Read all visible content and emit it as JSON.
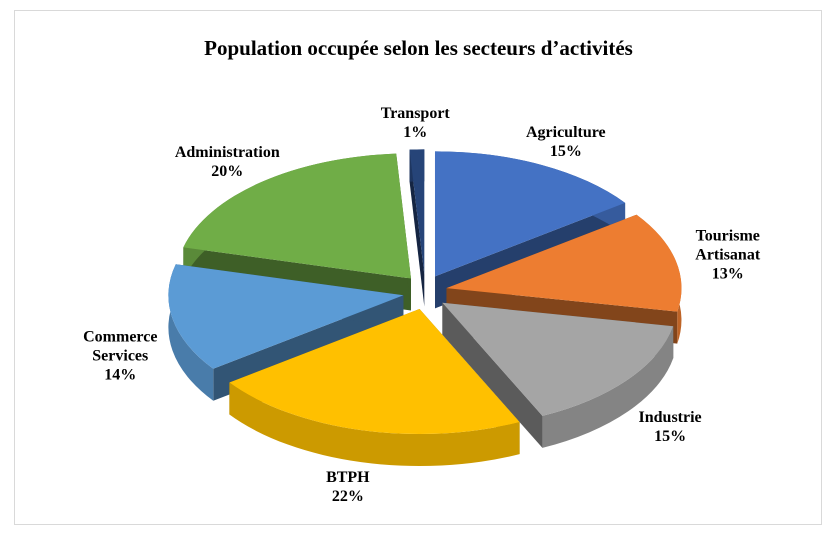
{
  "chart_data": {
    "type": "pie",
    "title": "Population occupée selon les secteurs d’activités",
    "categories": [
      "Agriculture",
      "Tourisme Artisanat",
      "Industrie",
      "BTPH",
      "Commerce Services",
      "Administration",
      "Transport"
    ],
    "values": [
      15,
      13,
      15,
      22,
      14,
      20,
      1
    ],
    "value_labels": [
      "15%",
      "13%",
      "15%",
      "22%",
      "14%",
      "20%",
      "1%"
    ],
    "colors": [
      "#4472c4",
      "#ed7d31",
      "#a5a5a5",
      "#ffc000",
      "#5b9bd5",
      "#70ad47",
      "#264478"
    ]
  }
}
